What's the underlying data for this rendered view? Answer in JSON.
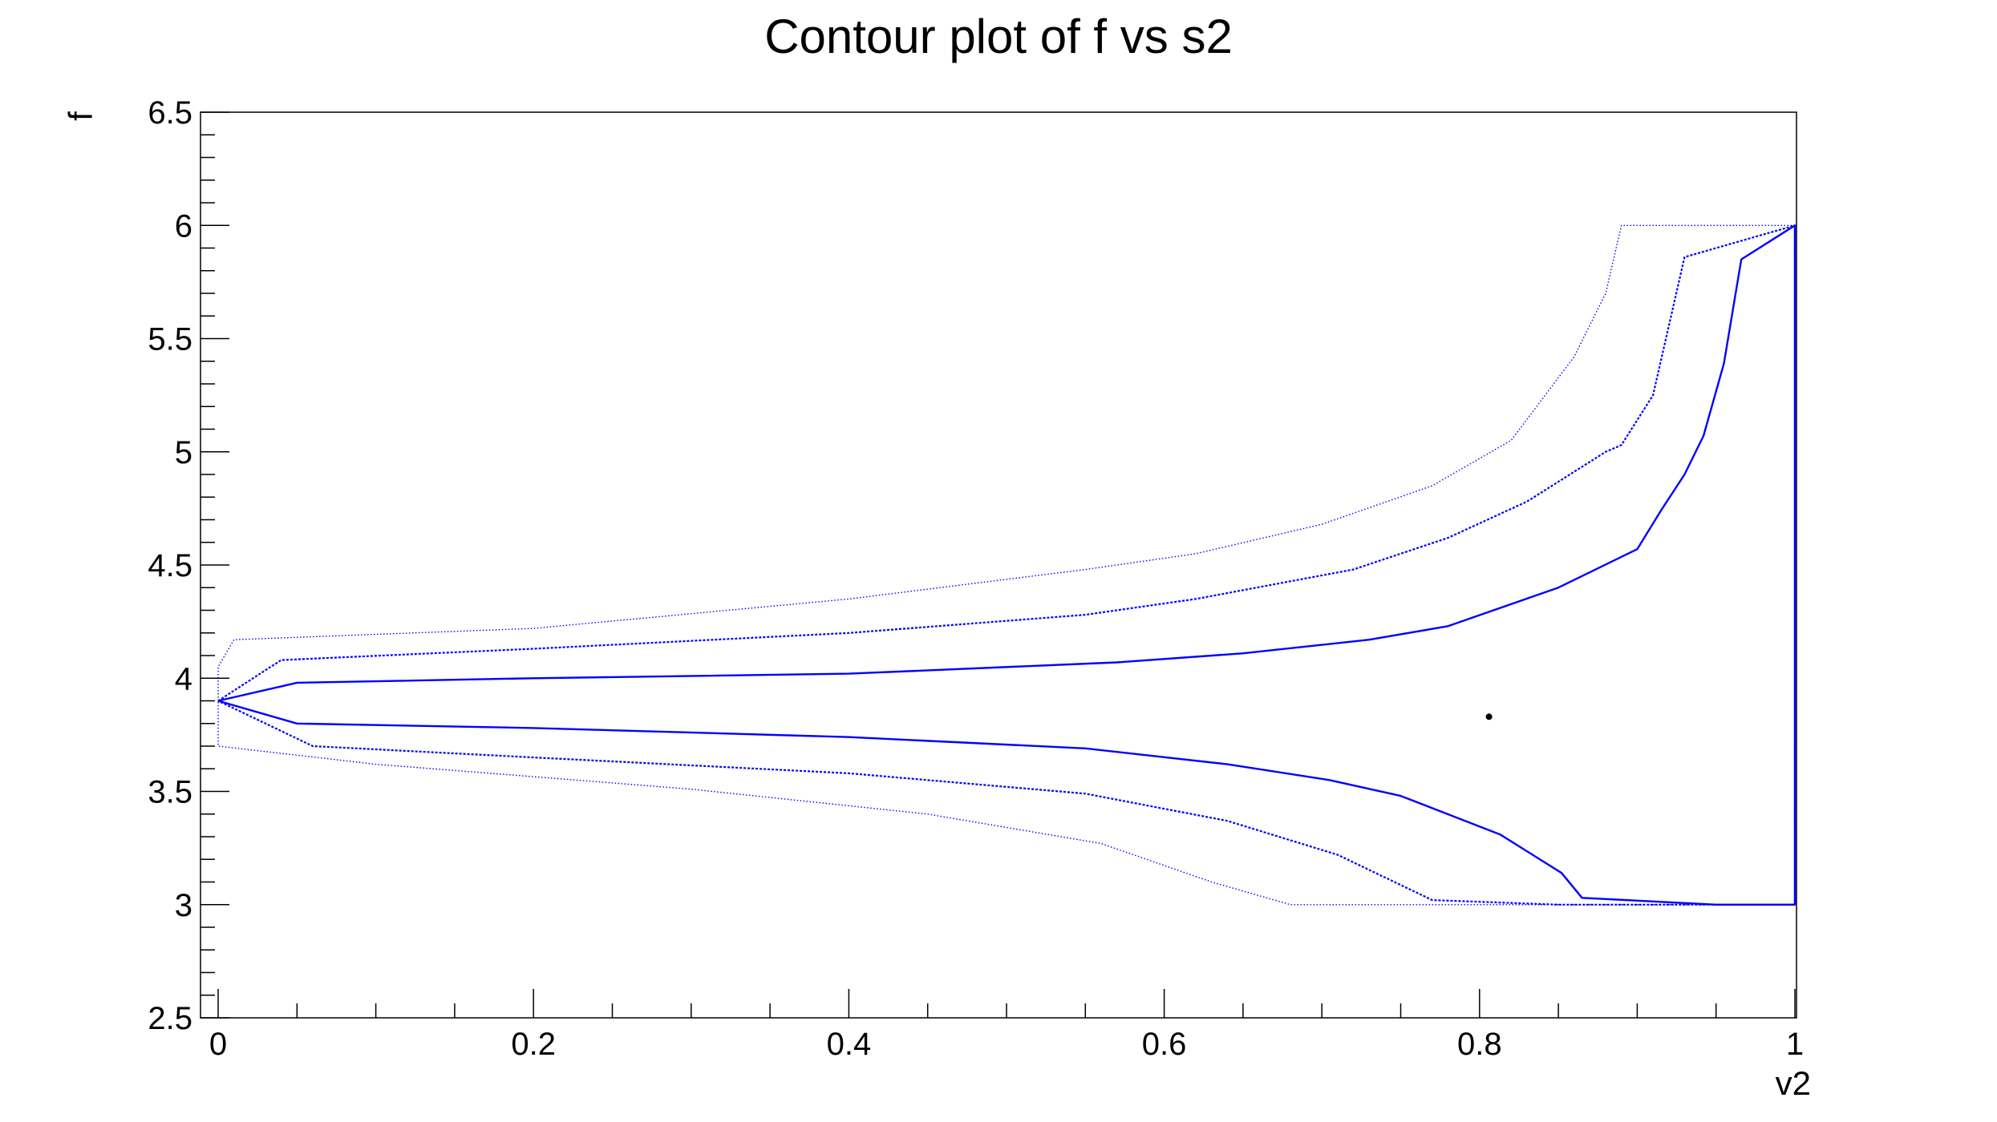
{
  "chart_data": {
    "type": "line",
    "title": "Contour plot of f vs s2",
    "xlabel": "v2",
    "ylabel": "f",
    "xlim": [
      0,
      1
    ],
    "ylim": [
      2.5,
      6.5
    ],
    "x_ticks": [
      "0",
      "0.2",
      "0.4",
      "0.6",
      "0.8",
      "1"
    ],
    "y_ticks": [
      "2.5",
      "3",
      "3.5",
      "4",
      "4.5",
      "5",
      "5.5",
      "6",
      "6.5"
    ],
    "grid": false,
    "legend": "none",
    "best_fit_point": {
      "x": 0.806,
      "y": 3.83
    },
    "colors": {
      "contour": "#0000ff",
      "point": "#000000",
      "axis": "#000000"
    },
    "series": [
      {
        "style": "solid",
        "points": [
          [
            0.0,
            3.9
          ],
          [
            0.05,
            3.98
          ],
          [
            0.2,
            4.0
          ],
          [
            0.4,
            4.02
          ],
          [
            0.57,
            4.07
          ],
          [
            0.65,
            4.11
          ],
          [
            0.73,
            4.17
          ],
          [
            0.78,
            4.23
          ],
          [
            0.85,
            4.4
          ],
          [
            0.9,
            4.57
          ],
          [
            0.915,
            4.74
          ],
          [
            0.93,
            4.9
          ],
          [
            0.942,
            5.07
          ],
          [
            0.955,
            5.39
          ],
          [
            0.966,
            5.85
          ],
          [
            1.0,
            6.0
          ],
          [
            1.0,
            4.1
          ],
          [
            1.0,
            3.0
          ],
          [
            0.95,
            3.0
          ],
          [
            0.865,
            3.03
          ],
          [
            0.852,
            3.14
          ],
          [
            0.813,
            3.31
          ],
          [
            0.75,
            3.48
          ],
          [
            0.705,
            3.55
          ],
          [
            0.64,
            3.62
          ],
          [
            0.55,
            3.69
          ],
          [
            0.4,
            3.74
          ],
          [
            0.2,
            3.78
          ],
          [
            0.05,
            3.8
          ],
          [
            0.0,
            3.9
          ]
        ]
      },
      {
        "style": "dashed",
        "points": [
          [
            0.0,
            3.9
          ],
          [
            0.04,
            4.08
          ],
          [
            0.2,
            4.13
          ],
          [
            0.4,
            4.2
          ],
          [
            0.55,
            4.28
          ],
          [
            0.62,
            4.35
          ],
          [
            0.72,
            4.48
          ],
          [
            0.78,
            4.62
          ],
          [
            0.83,
            4.78
          ],
          [
            0.88,
            5.0
          ],
          [
            0.89,
            5.03
          ],
          [
            0.91,
            5.25
          ],
          [
            0.93,
            5.86
          ],
          [
            1.0,
            6.0
          ],
          [
            1.0,
            3.0
          ],
          [
            0.85,
            3.0
          ],
          [
            0.77,
            3.02
          ],
          [
            0.71,
            3.22
          ],
          [
            0.64,
            3.37
          ],
          [
            0.55,
            3.49
          ],
          [
            0.4,
            3.58
          ],
          [
            0.2,
            3.65
          ],
          [
            0.06,
            3.7
          ],
          [
            0.0,
            3.9
          ]
        ]
      },
      {
        "style": "dotted",
        "points": [
          [
            0.0,
            3.9
          ],
          [
            0.0,
            4.05
          ],
          [
            0.01,
            4.17
          ],
          [
            0.2,
            4.22
          ],
          [
            0.4,
            4.35
          ],
          [
            0.55,
            4.48
          ],
          [
            0.62,
            4.55
          ],
          [
            0.7,
            4.68
          ],
          [
            0.77,
            4.85
          ],
          [
            0.82,
            5.05
          ],
          [
            0.86,
            5.42
          ],
          [
            0.88,
            5.7
          ],
          [
            0.89,
            6.0
          ],
          [
            1.0,
            6.0
          ],
          [
            1.0,
            3.0
          ],
          [
            0.68,
            3.0
          ],
          [
            0.63,
            3.1
          ],
          [
            0.56,
            3.27
          ],
          [
            0.45,
            3.4
          ],
          [
            0.3,
            3.51
          ],
          [
            0.1,
            3.62
          ],
          [
            0.0,
            3.7
          ],
          [
            0.0,
            3.9
          ]
        ]
      }
    ]
  }
}
